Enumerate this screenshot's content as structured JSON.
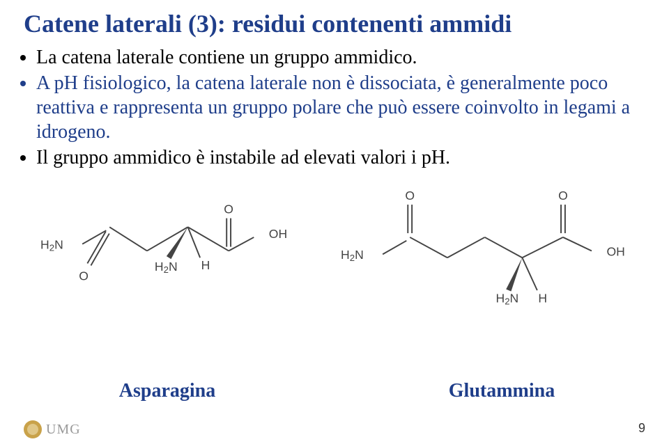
{
  "title": {
    "text": "Catene laterali (3): residui contenenti ammidi",
    "color": "#1f3e8a",
    "fontsize": 36
  },
  "bullets": [
    {
      "text": "La catena laterale contiene un gruppo ammidico.",
      "color": "#000000"
    },
    {
      "text": "A pH fisiologico, la catena laterale non è dissociata, è generalmente poco reattiva e rappresenta un gruppo polare che può essere coinvolto in legami a idrogeno.",
      "color": "#1f3e8a"
    },
    {
      "text": "Il gruppo ammidico è instabile ad elevati valori i pH.",
      "color": "#000000"
    }
  ],
  "figures": {
    "left": {
      "caption": "Asparagina",
      "caption_color": "#1f3e8a"
    },
    "right": {
      "caption": "Glutammina",
      "caption_color": "#1f3e8a"
    },
    "stroke_color": "#444444",
    "stroke_width": 2,
    "label_color": "#444444",
    "label_fontsize": 18
  },
  "footer": {
    "logo_text": "UMG",
    "logo_color": "#9a9a9a",
    "page_number": "9"
  }
}
